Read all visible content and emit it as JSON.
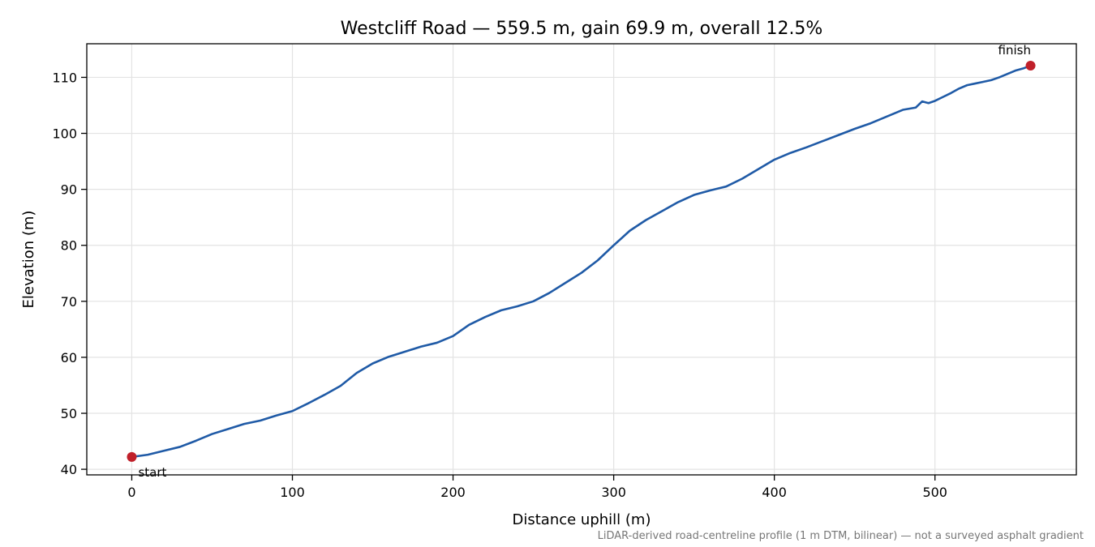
{
  "chart_data": {
    "type": "line",
    "title": "Westcliff Road — 559.5 m, gain 69.9 m, overall 12.5%",
    "xlabel": "Distance uphill (m)",
    "ylabel": "Elevation (m)",
    "xlim": [
      -28,
      588
    ],
    "ylim": [
      39,
      116
    ],
    "xticks": [
      0,
      100,
      200,
      300,
      400,
      500
    ],
    "yticks": [
      40,
      50,
      60,
      70,
      80,
      90,
      100,
      110
    ],
    "grid": true,
    "footnote": "LiDAR-derived road-centreline profile (1 m DTM, bilinear) — not a surveyed asphalt gradient",
    "line_color": "#1f5aa6",
    "marker_color": "#c0202a",
    "series": [
      {
        "x": [
          0,
          10,
          20,
          30,
          40,
          50,
          60,
          70,
          80,
          90,
          100,
          110,
          120,
          130,
          140,
          150,
          160,
          170,
          180,
          190,
          200,
          210,
          220,
          230,
          240,
          250,
          260,
          270,
          280,
          290,
          300,
          310,
          320,
          330,
          340,
          350,
          360,
          370,
          380,
          390,
          400,
          410,
          420,
          430,
          440,
          450,
          460,
          470,
          480,
          488,
          492,
          496,
          500,
          505,
          510,
          515,
          520,
          525,
          530,
          535,
          540,
          545,
          550,
          555,
          559.5
        ],
        "y": [
          42.2,
          42.6,
          43.3,
          44.0,
          45.1,
          46.3,
          47.2,
          48.1,
          48.7,
          49.6,
          50.4,
          51.8,
          53.3,
          54.9,
          57.2,
          58.9,
          60.1,
          61.0,
          61.9,
          62.6,
          63.8,
          65.8,
          67.2,
          68.4,
          69.1,
          70.0,
          71.5,
          73.3,
          75.1,
          77.3,
          80.0,
          82.6,
          84.5,
          86.1,
          87.7,
          89.0,
          89.8,
          90.5,
          91.9,
          93.6,
          95.3,
          96.5,
          97.5,
          98.6,
          99.7,
          100.8,
          101.8,
          103.0,
          104.2,
          104.6,
          105.7,
          105.4,
          105.8,
          106.5,
          107.2,
          108.0,
          108.6,
          108.9,
          109.2,
          109.5,
          110.0,
          110.6,
          111.2,
          111.6,
          112.1
        ]
      }
    ],
    "markers": [
      {
        "label": "start",
        "x": 0,
        "y": 42.2
      },
      {
        "label": "finish",
        "x": 559.5,
        "y": 112.1
      }
    ]
  }
}
